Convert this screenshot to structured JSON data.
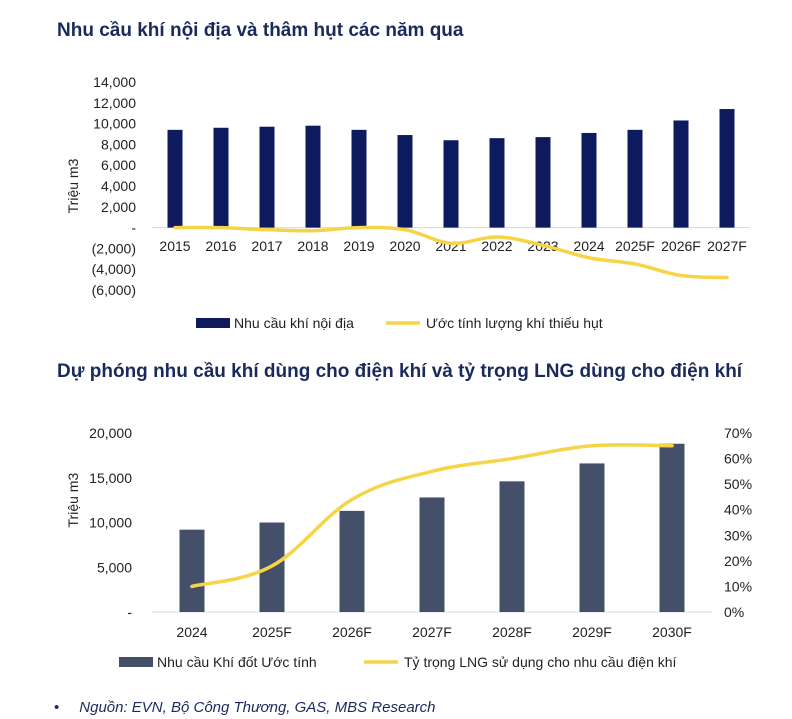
{
  "chart_data": [
    {
      "type": "bar+line",
      "title": "Nhu cầu khí nội địa và thâm hụt các năm qua",
      "ylabel": "Triệu m3",
      "ylim": [
        -6000,
        14000
      ],
      "yticks": [
        {
          "value": 14000,
          "label": "14,000"
        },
        {
          "value": 12000,
          "label": "12,000"
        },
        {
          "value": 10000,
          "label": "10,000"
        },
        {
          "value": 8000,
          "label": "8,000"
        },
        {
          "value": 6000,
          "label": "6,000"
        },
        {
          "value": 4000,
          "label": "4,000"
        },
        {
          "value": 2000,
          "label": "2,000"
        },
        {
          "value": 0,
          "label": "-"
        },
        {
          "value": -2000,
          "label": "(2,000)"
        },
        {
          "value": -4000,
          "label": "(4,000)"
        },
        {
          "value": -6000,
          "label": "(6,000)"
        }
      ],
      "categories": [
        "2015",
        "2016",
        "2017",
        "2018",
        "2019",
        "2020",
        "2021",
        "2022",
        "2023",
        "2024",
        "2025F",
        "2026F",
        "2027F"
      ],
      "series": [
        {
          "name": "Nhu cầu khí nội địa",
          "kind": "bar",
          "color": "#0d1b5e",
          "values": [
            9400,
            9600,
            9700,
            9800,
            9400,
            8900,
            8400,
            8600,
            8700,
            9100,
            9400,
            10300,
            11400
          ]
        },
        {
          "name": "Ước tính lượng khí thiếu hụt",
          "kind": "line",
          "color": "#f5d547",
          "values": [
            0,
            0,
            -200,
            -300,
            0,
            -200,
            -1500,
            -900,
            -1700,
            -2900,
            -3500,
            -4600,
            -4800
          ]
        }
      ],
      "legend": "bottom"
    },
    {
      "type": "bar+line",
      "title": "Dự phóng nhu cầu khí dùng cho điện khí và tỷ trọng LNG dùng cho điện khí",
      "ylabel": "Triệu m3",
      "ylim": [
        0,
        20000
      ],
      "yticks": [
        {
          "value": 20000,
          "label": "20,000"
        },
        {
          "value": 15000,
          "label": "15,000"
        },
        {
          "value": 10000,
          "label": "10,000"
        },
        {
          "value": 5000,
          "label": "5,000"
        },
        {
          "value": 0,
          "label": "-"
        }
      ],
      "y2lim": [
        0,
        70
      ],
      "y2ticks": [
        {
          "value": 70,
          "label": "70%"
        },
        {
          "value": 60,
          "label": "60%"
        },
        {
          "value": 50,
          "label": "50%"
        },
        {
          "value": 40,
          "label": "40%"
        },
        {
          "value": 30,
          "label": "30%"
        },
        {
          "value": 20,
          "label": "20%"
        },
        {
          "value": 10,
          "label": "10%"
        },
        {
          "value": 0,
          "label": "0%"
        }
      ],
      "categories": [
        "2024",
        "2025F",
        "2026F",
        "2027F",
        "2028F",
        "2029F",
        "2030F"
      ],
      "series": [
        {
          "name": "Nhu cầu Khí đốt Ước tính",
          "kind": "bar",
          "axis": "left",
          "color": "#44506a",
          "values": [
            9200,
            10000,
            11300,
            12800,
            14600,
            16600,
            18800
          ]
        },
        {
          "name": "Tỷ trọng LNG sử dụng cho nhu cầu điện khí",
          "kind": "line",
          "axis": "right",
          "color": "#f5d547",
          "values": [
            10,
            18,
            44,
            55,
            60,
            65,
            65
          ]
        }
      ],
      "legend": "bottom"
    }
  ],
  "source": {
    "bullet": "•",
    "text": "Nguồn: EVN, Bộ Công Thương, GAS, MBS Research"
  }
}
